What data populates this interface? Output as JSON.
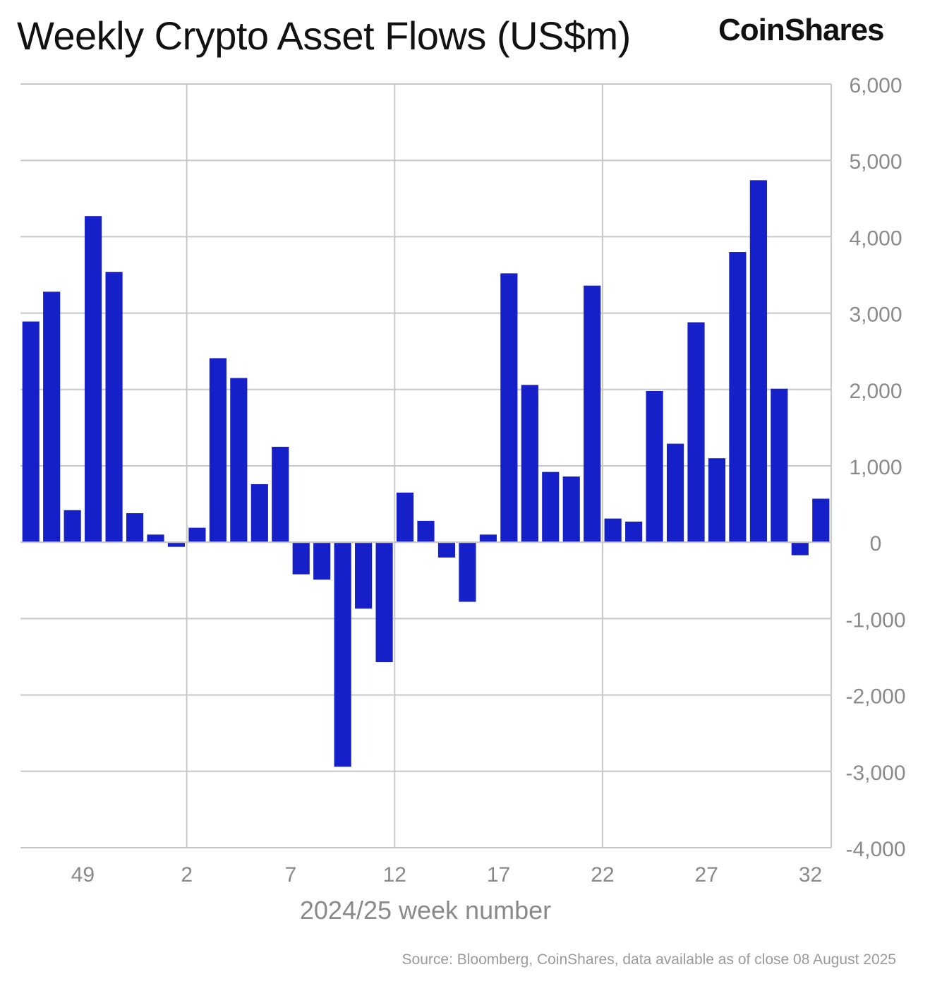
{
  "header": {
    "title": "Weekly Crypto Asset Flows (US$m)",
    "brand": "CoinShares"
  },
  "footer": {
    "source": "Source: Bloomberg, CoinShares, data available as of close 08 August 2025"
  },
  "colors": {
    "bar": "#1520c8",
    "grid": "#c8c8c8",
    "tick_text": "#8a8a8a"
  },
  "chart_data": {
    "type": "bar",
    "title": "Weekly Crypto Asset Flows (US$m)",
    "xlabel": "2024/25 week number",
    "ylabel": "",
    "ylim": [
      -4000,
      6000
    ],
    "y_ticks": [
      "6,000",
      "5,000",
      "4,000",
      "3,000",
      "2,000",
      "1,000",
      "0",
      "-1,000",
      "-2,000",
      "-3,000",
      "-4,000"
    ],
    "y_tick_values": [
      6000,
      5000,
      4000,
      3000,
      2000,
      1000,
      0,
      -1000,
      -2000,
      -3000,
      -4000
    ],
    "x_ticks": [
      "49",
      "2",
      "7",
      "12",
      "17",
      "22",
      "27",
      "32"
    ],
    "x_tick_categories": [
      "49",
      "2",
      "7",
      "12",
      "17",
      "22",
      "27",
      "32"
    ],
    "grid": true,
    "categories": [
      "46",
      "47",
      "48",
      "49",
      "50",
      "51",
      "52",
      "1",
      "2",
      "3",
      "4",
      "5",
      "6",
      "7",
      "8",
      "9",
      "10",
      "11",
      "12",
      "13",
      "14",
      "15",
      "16",
      "17",
      "18",
      "19",
      "20",
      "21",
      "22",
      "23",
      "24",
      "25",
      "26",
      "27",
      "28",
      "29",
      "30",
      "31",
      "32"
    ],
    "values": [
      2890,
      3280,
      420,
      4270,
      3540,
      380,
      100,
      -60,
      190,
      2410,
      2150,
      760,
      1250,
      -420,
      -490,
      -2940,
      -870,
      -1570,
      650,
      280,
      -200,
      -780,
      100,
      3520,
      2060,
      920,
      860,
      3360,
      310,
      270,
      1980,
      1290,
      2880,
      1100,
      3800,
      4740,
      2010,
      -170,
      570
    ]
  }
}
